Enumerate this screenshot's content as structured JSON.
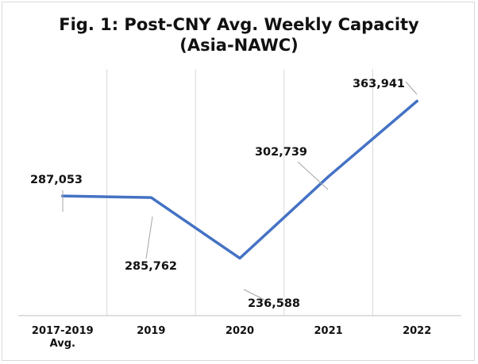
{
  "chart_data": {
    "type": "line",
    "title_lines": [
      "Fig. 1: Post-CNY Avg. Weekly Capacity",
      "(Asia-NAWC)"
    ],
    "categories": [
      [
        "2017-2019",
        "Avg."
      ],
      [
        "2019"
      ],
      [
        "2020"
      ],
      [
        "2021"
      ],
      [
        "2022"
      ]
    ],
    "series": [
      {
        "values": [
          287053,
          285762,
          236588,
          302739,
          363941
        ]
      }
    ],
    "data_labels": [
      "287,053",
      "285,762",
      "236,588",
      "302,739",
      "363,941"
    ],
    "ylim": [
      190000,
      390000
    ],
    "xlabel": "",
    "ylabel": "",
    "grid": {
      "vertical": true,
      "horizontal": false
    },
    "legend": "none",
    "colors": {
      "line": "#4472c4",
      "grid": "#d9d9d9",
      "axis": "#bfbfbf",
      "leader": "#a6a6a6",
      "text": "#111111"
    }
  }
}
